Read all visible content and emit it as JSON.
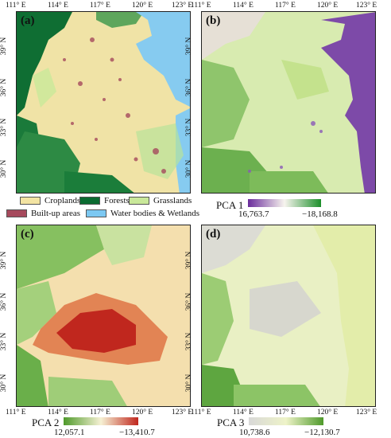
{
  "panels": {
    "a": {
      "label": "(a)"
    },
    "b": {
      "label": "(b)"
    },
    "c": {
      "label": "(c)"
    },
    "d": {
      "label": "(d)"
    }
  },
  "lon_ticks": [
    "111° E",
    "114° E",
    "117° E",
    "120° E",
    "123° E"
  ],
  "lat_ticks": [
    "39° N",
    "36° N",
    "33° N",
    "30° N"
  ],
  "legend_a": [
    {
      "label": "Croplands",
      "color": "#f3e4a3"
    },
    {
      "label": "Forests",
      "color": "#0b6b31"
    },
    {
      "label": "Grasslands",
      "color": "#c9e89a"
    },
    {
      "label": "Built-up areas",
      "color": "#a64a5d"
    },
    {
      "label": "Water bodies & Wetlands",
      "color": "#7cc8f2"
    }
  ],
  "colorbars": {
    "pca1": {
      "title": "PCA 1",
      "min": "16,763.7",
      "max": "−18,168.8",
      "colors": [
        "#6a2c9c",
        "#f7f4ee",
        "#1c8f2a"
      ]
    },
    "pca2": {
      "title": "PCA 2",
      "min": "12,057.1",
      "max": "−13,410.7",
      "colors": [
        "#4f9a2b",
        "#f6f1d4",
        "#c0271e"
      ]
    },
    "pca3": {
      "title": "PCA 3",
      "min": "10,738.6",
      "max": "−12,130.7",
      "colors": [
        "#d8d8d8",
        "#eef3c8",
        "#4f9a2b"
      ]
    }
  }
}
